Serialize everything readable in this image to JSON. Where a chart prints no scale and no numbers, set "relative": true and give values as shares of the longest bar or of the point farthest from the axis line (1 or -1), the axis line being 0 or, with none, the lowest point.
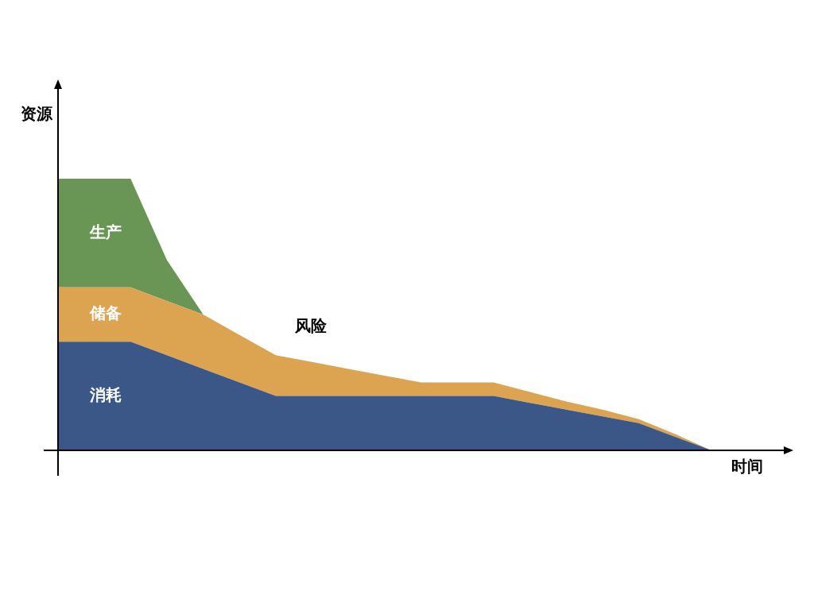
{
  "chart_data": {
    "type": "area",
    "relative": true,
    "stacked": true,
    "xlabel": "时间",
    "ylabel": "资源",
    "annotations": [
      "风险"
    ],
    "categories": [
      null,
      null,
      null,
      null,
      null,
      null,
      null,
      null,
      null,
      null,
      null,
      null,
      null,
      null,
      null,
      null,
      null,
      null,
      null
    ],
    "series": [
      {
        "name": "消耗",
        "color": "#3a5787",
        "values": [
          0.4,
          0.4,
          0.4,
          0.35,
          0.3,
          0.25,
          0.2,
          0.2,
          0.2,
          0.2,
          0.2,
          0.2,
          0.2,
          0.175,
          0.15,
          0.125,
          0.1,
          0.05,
          0
        ]
      },
      {
        "name": "储备",
        "color": "#dca450",
        "values": [
          0.2,
          0.2,
          0.2,
          0.2,
          0.2,
          0.175,
          0.15,
          0.125,
          0.1,
          0.075,
          0.05,
          0.05,
          0.05,
          0.04,
          0.03,
          0.025,
          0.015,
          0.01,
          0
        ]
      },
      {
        "name": "生产",
        "color": "#6a9655",
        "values": [
          0.4,
          0.4,
          0.4,
          0.15,
          0,
          null,
          null,
          null,
          null,
          null,
          null,
          null,
          null,
          null,
          null,
          null,
          null,
          null,
          null
        ]
      }
    ]
  }
}
